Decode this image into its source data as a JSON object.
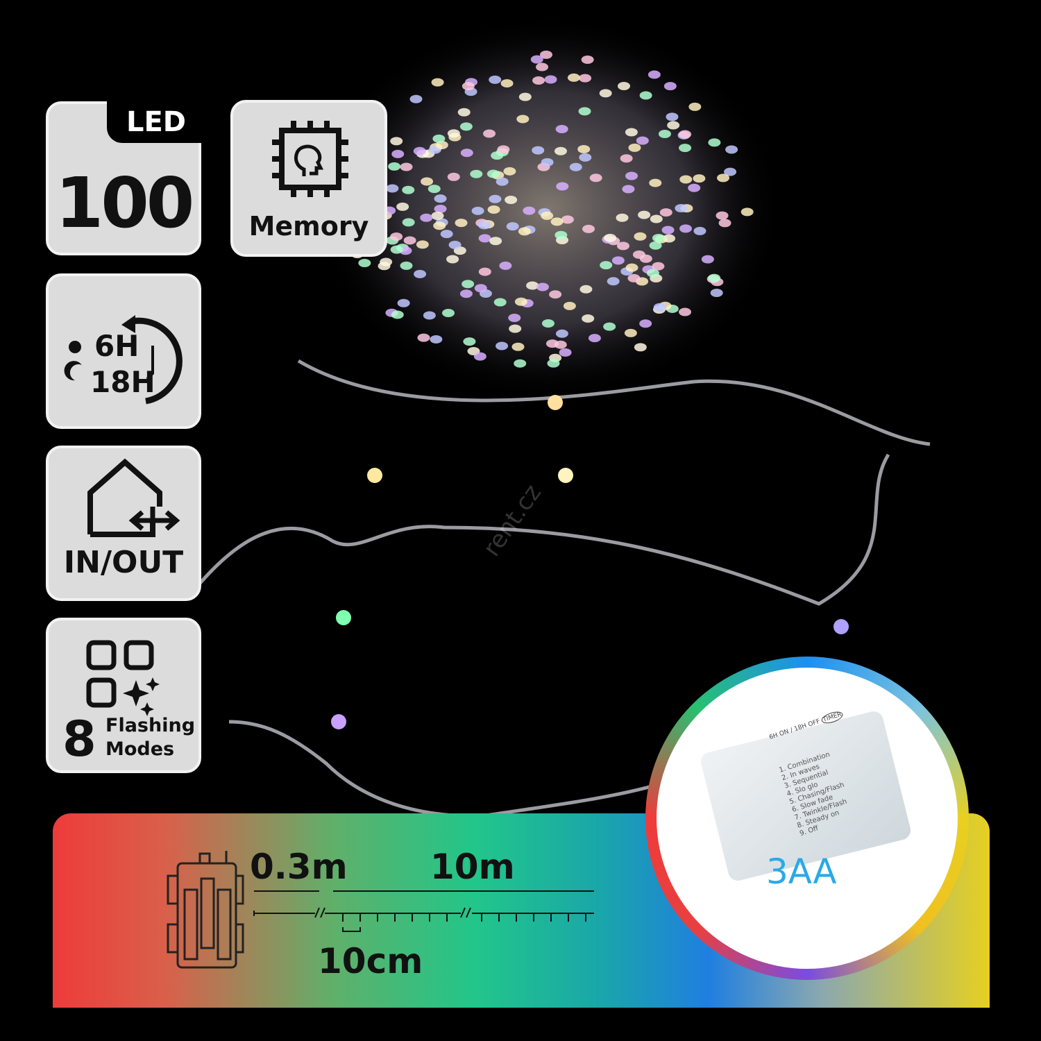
{
  "badges": {
    "led": {
      "tag": "LED",
      "count": "100"
    },
    "memory": {
      "label": "Memory",
      "icon": "chip-head-icon"
    },
    "timer": {
      "on": "6H",
      "off": "18H",
      "icon": "timer-icon"
    },
    "inout": {
      "label": "IN/OUT",
      "icon": "house-arrows-icon"
    },
    "modes": {
      "count": "8",
      "line1": "Flashing",
      "line2": "Modes",
      "icon": "grid-sparkle-icon"
    }
  },
  "dimensions": {
    "lead": "0.3m",
    "length": "10m",
    "spacing": "10cm"
  },
  "battery_box": {
    "label": "3AA",
    "timer_on": "6H ON",
    "timer_off": "18H OFF",
    "timer_btn": "TIMER",
    "modes": [
      "1. Combination",
      "2. In waves",
      "3. Sequential",
      "4. Slo glo",
      "5. Chasing/Flash",
      "6. Slow fade",
      "7. Twinkle/Flash",
      "8. Steady on",
      "9. Off"
    ]
  },
  "watermark": "rent.cz",
  "colors": {
    "banner_start": "#ee3b3b",
    "banner_mid": "#22c68a",
    "banner_blue": "#1f7fe0",
    "banner_end": "#e6d020",
    "aa_text": "#2aa9e8"
  }
}
